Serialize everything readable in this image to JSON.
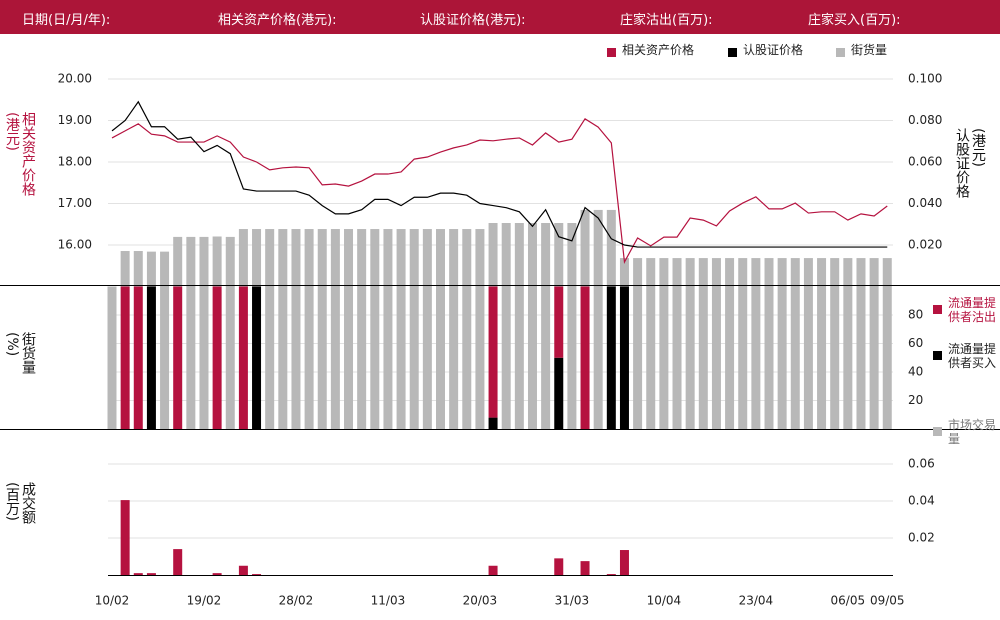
{
  "header": {
    "labels": [
      "日期(日/月/年):",
      "相关资产价格(港元):",
      "认股证价格(港元):",
      "庄家沽出(百万):",
      "庄家买入(百万):"
    ]
  },
  "chart_data": [
    {
      "type": "line",
      "y_label": "相关资产价格(港元)",
      "y2_label": "认股证价格(港元)",
      "ylim": [
        15,
        20.8
      ],
      "yticks": [
        {
          "value": 20,
          "label": "20.00"
        },
        {
          "value": 19,
          "label": "19.00"
        },
        {
          "value": 18,
          "label": "18.00"
        },
        {
          "value": 17,
          "label": "17.00"
        },
        {
          "value": 16,
          "label": "16.00"
        }
      ],
      "y2lim": [
        0,
        0.116
      ],
      "y2ticks": [
        {
          "value": 0.1,
          "label": "0.100"
        },
        {
          "value": 0.08,
          "label": "0.080"
        },
        {
          "value": 0.06,
          "label": "0.060"
        },
        {
          "value": 0.04,
          "label": "0.040"
        },
        {
          "value": 0.02,
          "label": "0.020"
        }
      ],
      "grid": true,
      "series": [
        {
          "name": "相关资产价格",
          "color": "#b5123f",
          "values": [
            18.58,
            18.75,
            18.92,
            18.67,
            18.63,
            18.48,
            18.48,
            18.48,
            18.63,
            18.48,
            18.12,
            18.0,
            17.81,
            17.86,
            17.88,
            17.86,
            17.45,
            17.47,
            17.42,
            17.54,
            17.71,
            17.71,
            17.76,
            18.07,
            18.12,
            18.24,
            18.34,
            18.41,
            18.53,
            18.51,
            18.55,
            18.58,
            18.41,
            18.7,
            18.48,
            18.55,
            19.04,
            18.84,
            18.46,
            15.59,
            16.17,
            15.98,
            16.19,
            16.19,
            16.65,
            16.6,
            16.46,
            16.82,
            17.01,
            17.16,
            16.87,
            16.87,
            17.01,
            16.77,
            16.8,
            16.8,
            16.6,
            16.75,
            16.7,
            16.94
          ]
        },
        {
          "name": "认股证价格",
          "color": "#000000",
          "axis": "y2",
          "values": [
            0.075,
            0.08,
            0.089,
            0.077,
            0.077,
            0.071,
            0.072,
            0.065,
            0.068,
            0.064,
            0.047,
            0.046,
            0.046,
            0.046,
            0.046,
            0.044,
            0.039,
            0.035,
            0.035,
            0.037,
            0.042,
            0.042,
            0.039,
            0.043,
            0.043,
            0.045,
            0.045,
            0.044,
            0.04,
            0.039,
            0.038,
            0.036,
            0.029,
            0.037,
            0.024,
            0.022,
            0.038,
            0.033,
            0.023,
            0.02,
            0.019,
            0.019,
            0.019,
            0.019,
            0.019,
            0.019,
            0.019,
            0.019,
            0.019,
            0.019,
            0.019,
            0.019,
            0.019,
            0.019,
            0.019,
            0.019,
            0.019,
            0.019,
            0.019,
            0.019
          ]
        },
        {
          "name": "街货量",
          "color": "#b8b8b8",
          "axis": "y2",
          "type": "bar",
          "values": [
            0,
            0.0171,
            0.0171,
            0.0168,
            0.0168,
            0.0239,
            0.0239,
            0.0239,
            0.0241,
            0.0239,
            0.0277,
            0.0277,
            0.0277,
            0.0277,
            0.0277,
            0.0277,
            0.0277,
            0.0277,
            0.0277,
            0.0277,
            0.0277,
            0.0277,
            0.0277,
            0.0277,
            0.0277,
            0.0277,
            0.0277,
            0.0277,
            0.0277,
            0.0306,
            0.0306,
            0.0306,
            0.0306,
            0.0306,
            0.0306,
            0.0306,
            0.0369,
            0.0369,
            0.0369,
            0.0137,
            0.0137,
            0.0137,
            0.0137,
            0.0137,
            0.0137,
            0.0137,
            0.0137,
            0.0137,
            0.0137,
            0.0137,
            0.0137,
            0.0137,
            0.0137,
            0.0137,
            0.0137,
            0.0137,
            0.0137,
            0.0137,
            0.0137,
            0.0137
          ]
        }
      ]
    },
    {
      "type": "stacked_bar",
      "y_label": "街货量(%)",
      "ylim": [
        0,
        100
      ],
      "yticks": [
        80,
        60,
        40,
        20
      ],
      "grid": true,
      "series": [
        {
          "name": "流通量提供者沽出",
          "color": "#b5123f",
          "values": [
            0,
            100,
            100,
            0,
            0,
            100,
            0,
            0,
            100,
            0,
            100,
            0,
            0,
            0,
            0,
            0,
            0,
            0,
            0,
            0,
            0,
            0,
            0,
            0,
            0,
            0,
            0,
            0,
            0,
            92,
            0,
            0,
            0,
            0,
            50,
            0,
            100,
            0,
            0,
            0,
            0,
            0,
            0,
            0,
            0,
            0,
            0,
            0,
            0,
            0,
            0,
            0,
            0,
            0,
            0,
            0,
            0,
            0,
            0,
            0
          ]
        },
        {
          "name": "流通量提供者买入",
          "color": "#000000",
          "values": [
            0,
            0,
            0,
            100,
            0,
            0,
            0,
            0,
            0,
            0,
            0,
            100,
            0,
            0,
            0,
            0,
            0,
            0,
            0,
            0,
            0,
            0,
            0,
            0,
            0,
            0,
            0,
            0,
            0,
            8,
            0,
            0,
            0,
            0,
            50,
            0,
            0,
            0,
            100,
            100,
            0,
            0,
            0,
            0,
            0,
            0,
            0,
            0,
            0,
            0,
            0,
            0,
            0,
            0,
            0,
            0,
            0,
            0,
            0,
            0
          ]
        },
        {
          "name": "市场交易量",
          "color": "#b8b8b8",
          "values": [
            100,
            0,
            0,
            0,
            100,
            0,
            100,
            100,
            0,
            100,
            0,
            0,
            100,
            100,
            100,
            100,
            100,
            100,
            100,
            100,
            100,
            100,
            100,
            100,
            100,
            100,
            100,
            100,
            100,
            0,
            100,
            100,
            100,
            100,
            0,
            100,
            0,
            100,
            0,
            0,
            100,
            100,
            100,
            100,
            100,
            100,
            100,
            100,
            100,
            100,
            100,
            100,
            100,
            100,
            100,
            100,
            100,
            100,
            100,
            100
          ]
        }
      ]
    },
    {
      "type": "bar",
      "y_label": "成交额(百万)",
      "ylim": [
        0,
        0.0784
      ],
      "yticks": [
        0.06,
        0.04,
        0.02
      ],
      "grid": true,
      "color": "#b5123f",
      "categories": [
        "10/02",
        null,
        null,
        null,
        null,
        null,
        null,
        "19/02",
        null,
        null,
        null,
        null,
        null,
        null,
        "28/02",
        null,
        null,
        null,
        null,
        null,
        null,
        "11/03",
        null,
        null,
        null,
        null,
        null,
        null,
        "20/03",
        null,
        null,
        null,
        null,
        null,
        null,
        "31/03",
        null,
        null,
        null,
        null,
        null,
        null,
        "10/04",
        null,
        null,
        null,
        null,
        null,
        null,
        "23/04",
        null,
        null,
        null,
        null,
        null,
        null,
        "06/05",
        null,
        null,
        "09/05"
      ],
      "values": [
        0,
        0.0405,
        0.001,
        0.001,
        0,
        0.014,
        0,
        0,
        0.001,
        0,
        0.005,
        0.0005,
        0,
        0,
        0,
        0,
        0,
        0,
        0,
        0,
        0,
        0,
        0,
        0,
        0,
        0,
        0,
        0,
        0,
        0.005,
        0,
        0,
        0,
        0,
        0.009,
        0,
        0.0075,
        0,
        0.0005,
        0.0135,
        0,
        0,
        0,
        0,
        0,
        0,
        0,
        0,
        0,
        0,
        0,
        0,
        0,
        0,
        0,
        0,
        0,
        0,
        0,
        0
      ]
    }
  ]
}
